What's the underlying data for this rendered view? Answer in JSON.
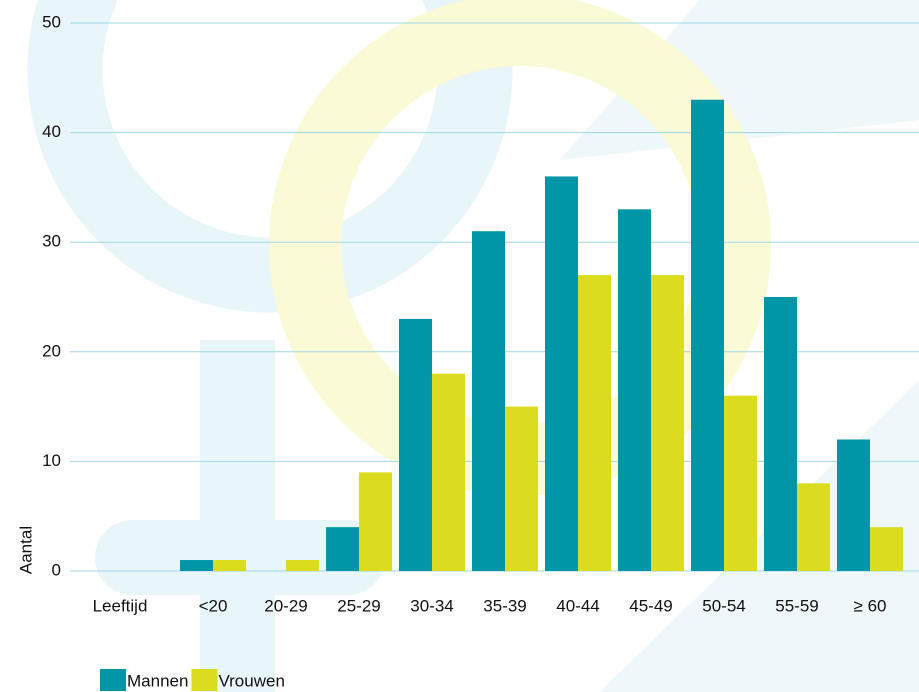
{
  "chart_data": {
    "type": "bar",
    "x_label": "Leeftijd",
    "y_label": "Aantal",
    "categories": [
      "<20",
      "20-29",
      "25-29",
      "30-34",
      "35-39",
      "40-44",
      "45-49",
      "50-54",
      "55-59",
      "≥ 60"
    ],
    "series": [
      {
        "name": "Mannen",
        "color": "#0096a8",
        "values": [
          1,
          0,
          4,
          23,
          31,
          36,
          33,
          43,
          25,
          12
        ]
      },
      {
        "name": "Vrouwen",
        "color": "#dcdc1e",
        "values": [
          1,
          1,
          9,
          18,
          15,
          27,
          27,
          16,
          8,
          4
        ]
      }
    ],
    "ylim": [
      0,
      50
    ],
    "yticks": [
      0,
      10,
      20,
      30,
      40,
      50
    ],
    "grid": true,
    "legend": "bottom-left"
  }
}
